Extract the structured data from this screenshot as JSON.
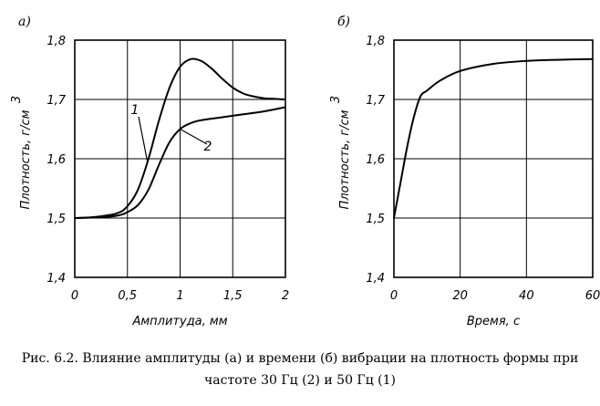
{
  "chart_data": [
    {
      "type": "line",
      "panel_label": "а)",
      "xlabel": "Амплитуда, мм",
      "ylabel": "Плотность, г/см",
      "ylabel_sup": "3",
      "xlim": [
        0,
        2
      ],
      "ylim": [
        1.4,
        1.8
      ],
      "x_ticks": [
        0,
        0.5,
        1,
        1.5,
        2
      ],
      "x_tick_labels": [
        "0",
        "0,5",
        "1",
        "1,5",
        "2"
      ],
      "y_ticks": [
        1.4,
        1.5,
        1.6,
        1.7,
        1.8
      ],
      "y_tick_labels": [
        "1,4",
        "1,5",
        "1,6",
        "1,7",
        "1,8"
      ],
      "grid": true,
      "series": [
        {
          "name": "1",
          "x": [
            0,
            0.2,
            0.4,
            0.5,
            0.6,
            0.7,
            0.8,
            0.9,
            1.0,
            1.1,
            1.2,
            1.3,
            1.4,
            1.5,
            1.6,
            1.7,
            1.8,
            1.9,
            2.0
          ],
          "y": [
            1.5,
            1.502,
            1.508,
            1.52,
            1.548,
            1.6,
            1.665,
            1.72,
            1.755,
            1.768,
            1.765,
            1.752,
            1.735,
            1.72,
            1.71,
            1.705,
            1.702,
            1.701,
            1.7
          ]
        },
        {
          "name": "2",
          "x": [
            0,
            0.2,
            0.4,
            0.5,
            0.6,
            0.7,
            0.8,
            0.9,
            1.0,
            1.1,
            1.2,
            1.4,
            1.6,
            1.8,
            2.0
          ],
          "y": [
            1.5,
            1.501,
            1.504,
            1.51,
            1.522,
            1.548,
            1.59,
            1.628,
            1.65,
            1.66,
            1.665,
            1.67,
            1.675,
            1.68,
            1.687
          ]
        }
      ]
    },
    {
      "type": "line",
      "panel_label": "б)",
      "xlabel": "Время, с",
      "ylabel": "Плотность, г/см",
      "ylabel_sup": "3",
      "xlim": [
        0,
        60
      ],
      "ylim": [
        1.4,
        1.8
      ],
      "x_ticks": [
        0,
        20,
        40,
        60
      ],
      "x_tick_labels": [
        "0",
        "20",
        "40",
        "60"
      ],
      "y_ticks": [
        1.4,
        1.5,
        1.6,
        1.7,
        1.8
      ],
      "y_tick_labels": [
        "1,4",
        "1,5",
        "1,6",
        "1,7",
        "1,8"
      ],
      "grid": true,
      "series": [
        {
          "name": "",
          "x": [
            0,
            2,
            4,
            6,
            8,
            10,
            14,
            20,
            30,
            40,
            50,
            60
          ],
          "y": [
            1.5,
            1.56,
            1.62,
            1.67,
            1.705,
            1.715,
            1.732,
            1.748,
            1.76,
            1.765,
            1.767,
            1.768
          ]
        }
      ]
    }
  ],
  "caption": {
    "line1": "Рис. 6.2. Влияние амплитуды (а) и времени (б) вибрации на плотность формы при",
    "line2": "частоте 30 Гц (2) и 50 Гц (1)"
  }
}
